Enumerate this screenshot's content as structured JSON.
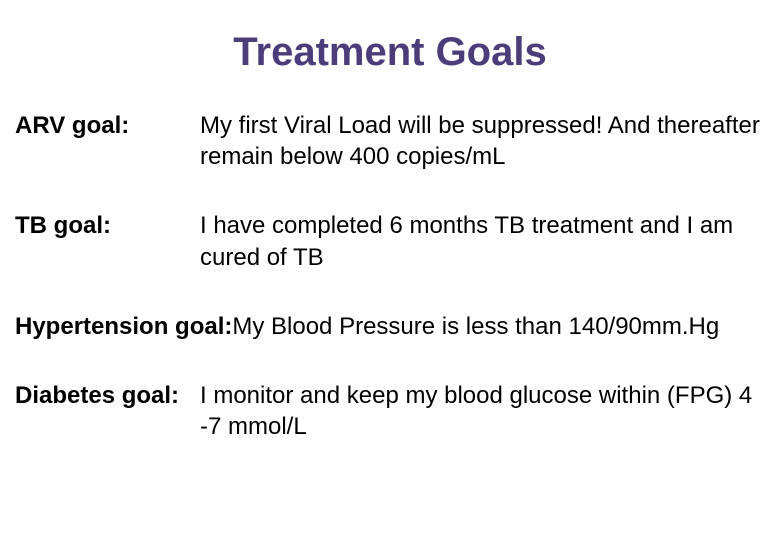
{
  "title": "Treatment Goals",
  "goals": [
    {
      "label": "ARV goal:",
      "text": "My first Viral Load will be suppressed! And thereafter remain below 400 copies/mL"
    },
    {
      "label": "TB goal:",
      "text": "I have completed 6 months TB treatment and I am cured of TB"
    },
    {
      "label": "Hypertension goal:",
      "text": "My Blood Pressure is less than 140/90mm.Hg"
    },
    {
      "label": "Diabetes goal:",
      "text": "I monitor and keep my blood glucose within (FPG) 4 -7 mmol/L"
    }
  ],
  "styling": {
    "title_color": "#4a3d7a",
    "title_fontsize": 40,
    "title_fontweight": "bold",
    "body_fontsize": 24,
    "body_color": "#000000",
    "label_fontweight": "bold",
    "background_color": "#ffffff",
    "label_column_width": 185,
    "row_gap": 38
  }
}
